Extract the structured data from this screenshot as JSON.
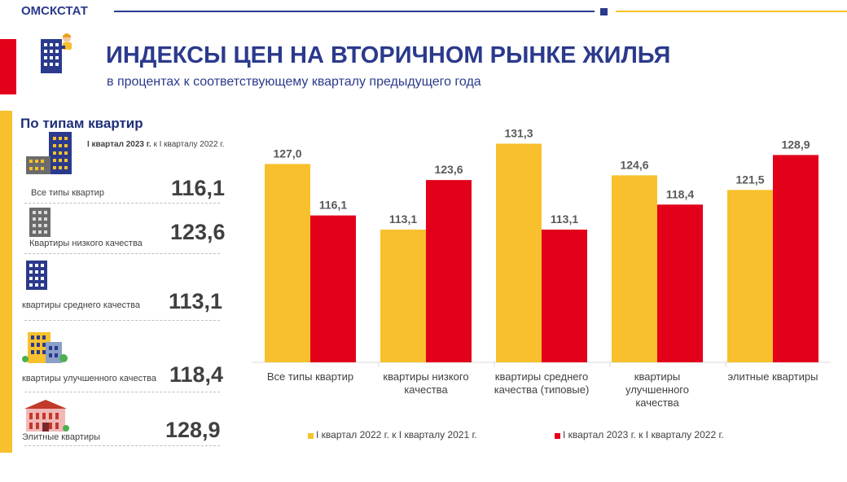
{
  "header": {
    "brand": "ОМСКСТАТ",
    "title": "ИНДЕКСЫ ЦЕН НА ВТОРИЧНОМ РЫНКЕ ЖИЛЬЯ",
    "subtitle": "в процентах к соответствующему кварталу предыдущего года"
  },
  "colors": {
    "navy": "#2b3a8c",
    "yellow": "#f7c02c",
    "red": "#e2001a"
  },
  "panel": {
    "title": "По типам квартир",
    "note_bold": "I квартал 2023 г.",
    "note_rest": " к I кварталу 2022 г.",
    "items": [
      {
        "label": "Все типы квартир",
        "value": "116,1",
        "icon": "apartment-blocks-icon"
      },
      {
        "label": "Квартиры низкого качества",
        "value": "123,6",
        "icon": "grey-building-icon"
      },
      {
        "label": "квартиры среднего качества",
        "value": "113,1",
        "icon": "blue-building-icon"
      },
      {
        "label": "квартиры улучшенного качества",
        "value": "118,4",
        "icon": "residential-building-icon"
      },
      {
        "label": "Элитные квартиры",
        "value": "128,9",
        "icon": "elite-building-icon"
      }
    ]
  },
  "chart_data": {
    "type": "bar",
    "categories": [
      [
        "Все типы квартир"
      ],
      [
        "квартиры низкого",
        "качества"
      ],
      [
        "квартиры среднего",
        "качества (типовые)"
      ],
      [
        "квартиры",
        "улучшенного",
        "качества"
      ],
      [
        "элитные квартиры"
      ]
    ],
    "series": [
      {
        "name": "I квартал 2022 г. к I кварталу 2021 г.",
        "color": "#f7c02c",
        "values": [
          127.0,
          113.1,
          131.3,
          124.6,
          121.5
        ],
        "labels": [
          "127,0",
          "113,1",
          "131,3",
          "124,6",
          "121,5"
        ]
      },
      {
        "name": "I квартал 2023 г. к I кварталу 2022 г.",
        "color": "#e2001a",
        "values": [
          116.1,
          123.6,
          113.1,
          118.4,
          128.9
        ],
        "labels": [
          "116,1",
          "123,6",
          "113,1",
          "118,4",
          "128,9"
        ]
      }
    ],
    "ylim": [
      85,
      135
    ],
    "legend": "bottom",
    "grid": false
  }
}
